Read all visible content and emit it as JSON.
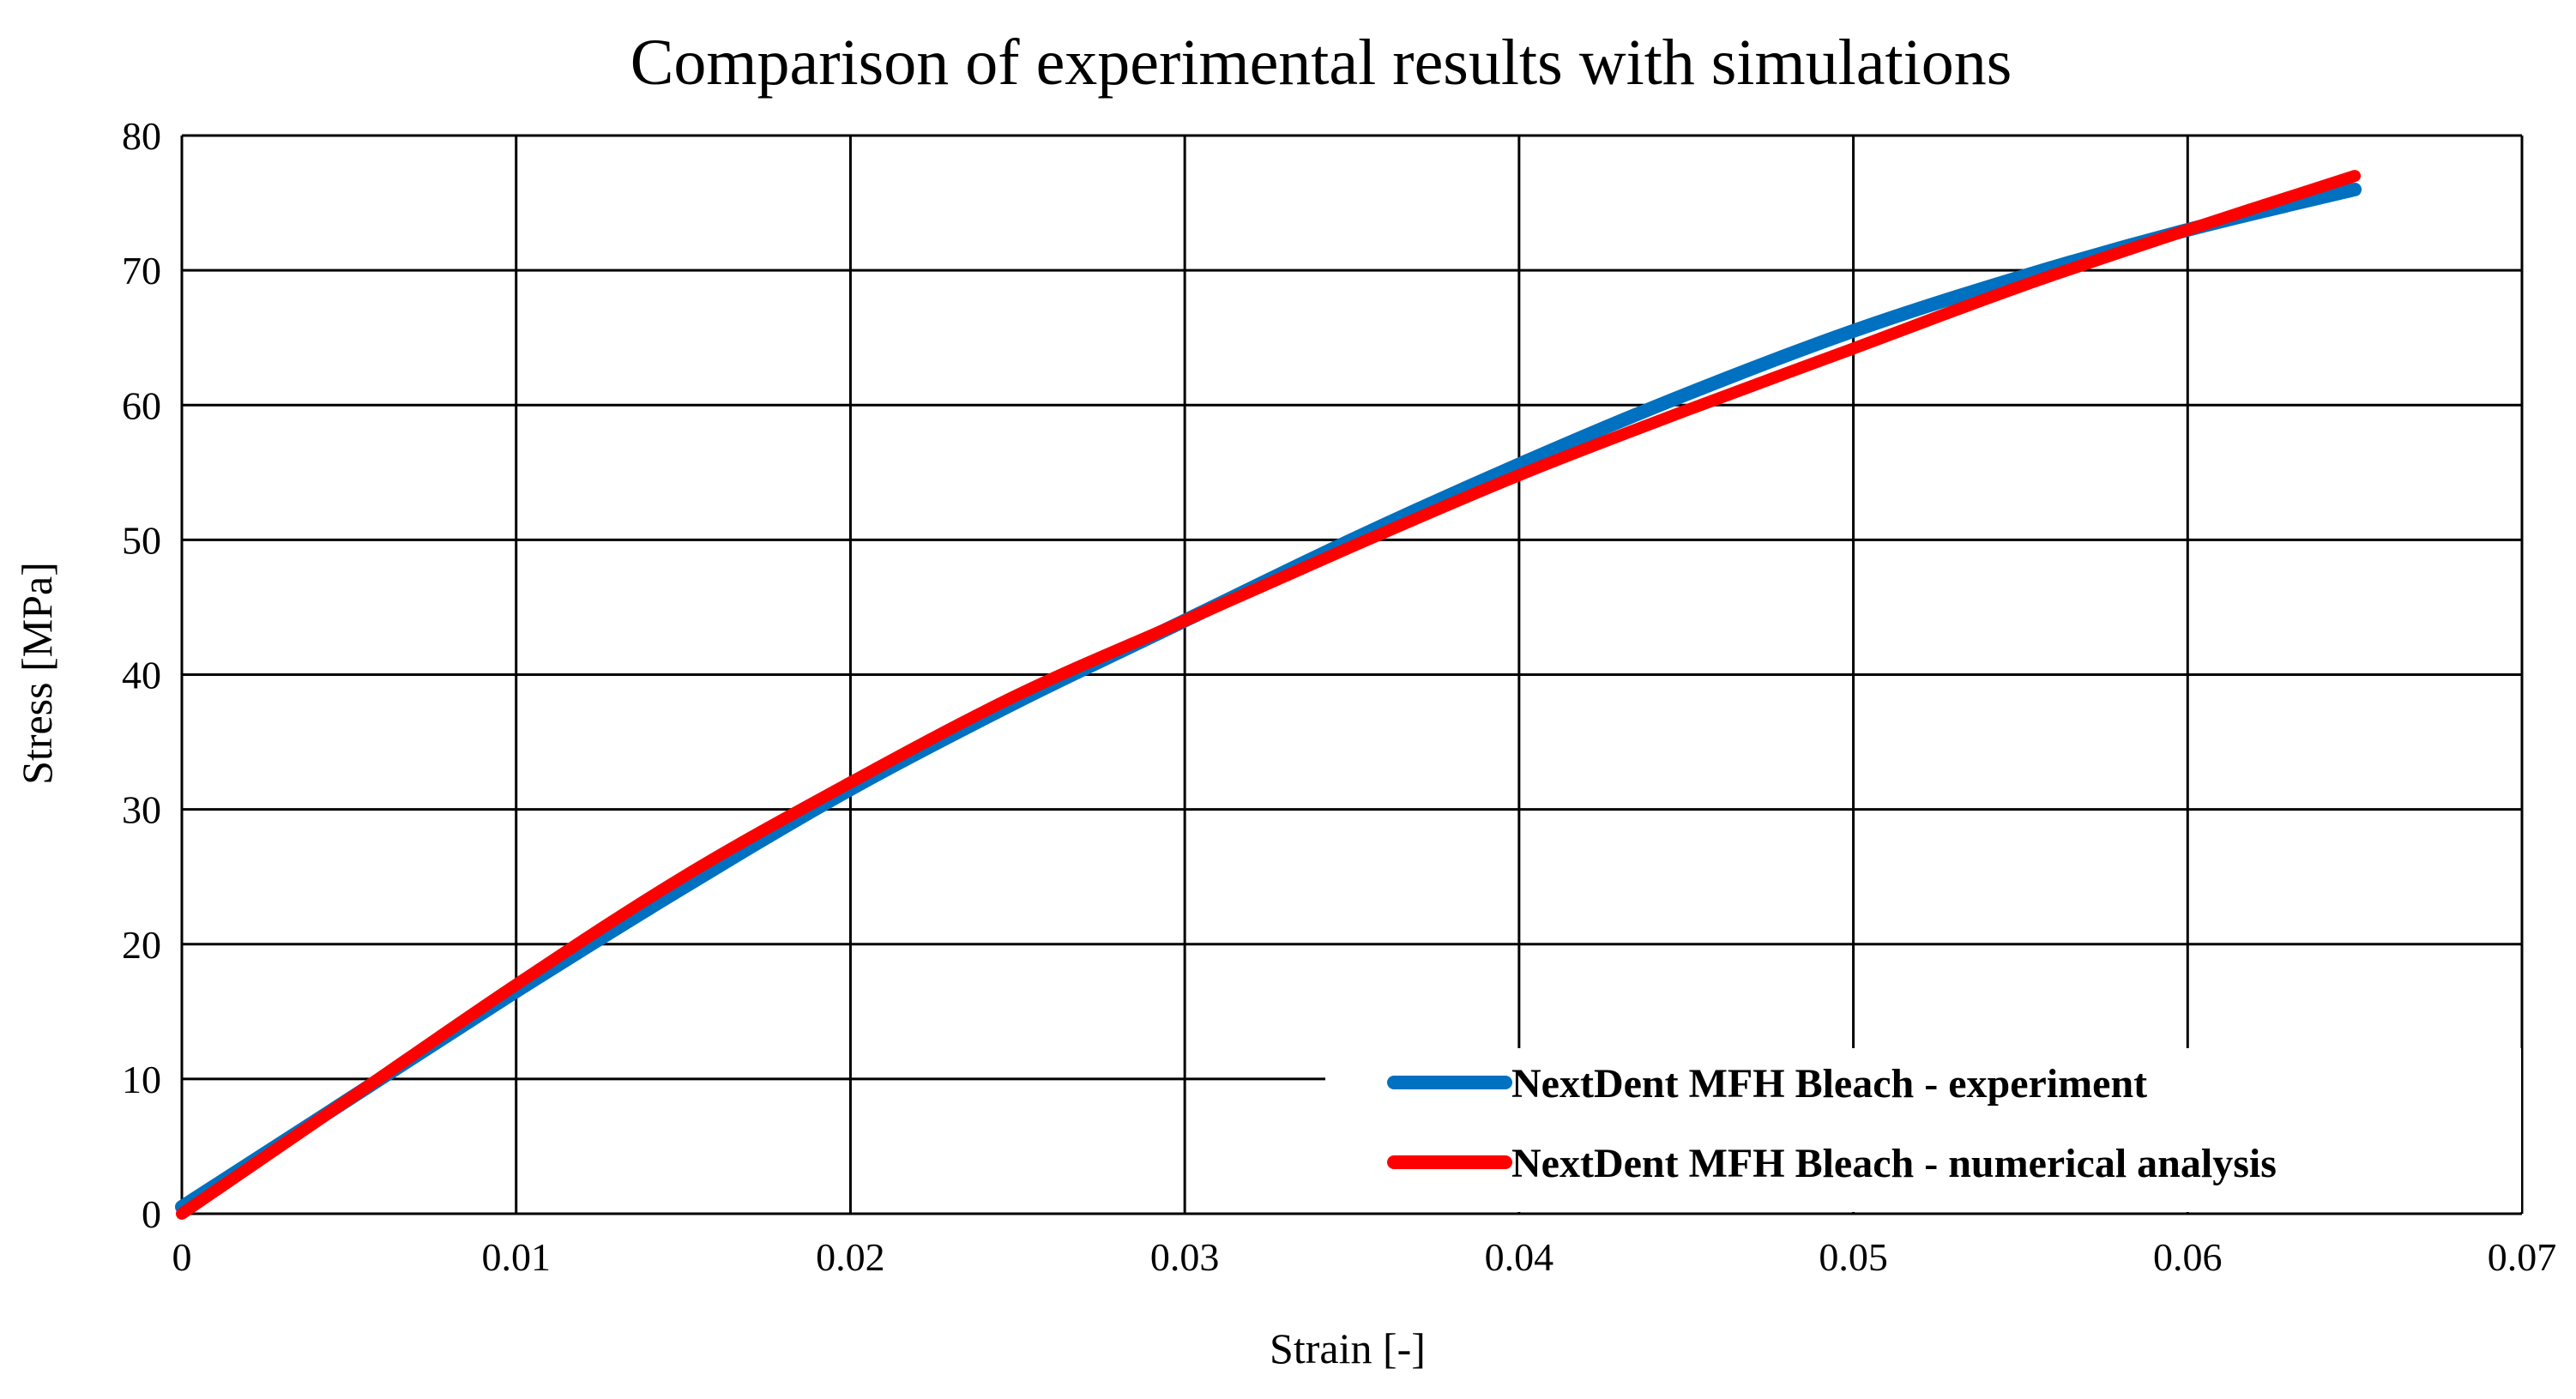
{
  "chart_data": {
    "type": "line",
    "title": "Comparison of experimental results with simulations",
    "xlabel": "Strain [-]",
    "ylabel": "Stress [MPa]",
    "xlim": [
      0,
      0.07
    ],
    "ylim": [
      0,
      80
    ],
    "x_ticks": [
      0,
      0.01,
      0.02,
      0.03,
      0.04,
      0.05,
      0.06,
      0.07
    ],
    "x_tick_labels": [
      "0",
      "0.01",
      "0.02",
      "0.03",
      "0.04",
      "0.05",
      "0.06",
      "0.07"
    ],
    "y_ticks": [
      0,
      10,
      20,
      30,
      40,
      50,
      60,
      70,
      80
    ],
    "y_tick_labels": [
      "0",
      "10",
      "20",
      "30",
      "40",
      "50",
      "60",
      "70",
      "80"
    ],
    "grid": true,
    "legend_position": "bottom-right",
    "series": [
      {
        "name": "NextDent MFH Bleach - experiment",
        "color": "#0070C0",
        "x": [
          0,
          0.005,
          0.01,
          0.015,
          0.02,
          0.025,
          0.03,
          0.035,
          0.04,
          0.045,
          0.05,
          0.055,
          0.06,
          0.065
        ],
        "y": [
          0.5,
          8.5,
          16.5,
          24.2,
          31.5,
          38.0,
          44.0,
          50.0,
          55.6,
          60.8,
          65.5,
          69.5,
          73.0,
          76.0
        ]
      },
      {
        "name": "NextDent MFH Bleach - numerical analysis",
        "color": "#FF0000",
        "x": [
          0,
          0.005,
          0.01,
          0.015,
          0.02,
          0.025,
          0.03,
          0.035,
          0.04,
          0.045,
          0.05,
          0.055,
          0.06,
          0.065
        ],
        "y": [
          0.0,
          8.5,
          17.0,
          25.0,
          32.0,
          38.5,
          44.0,
          49.5,
          54.8,
          59.6,
          64.2,
          68.8,
          73.0,
          77.0
        ]
      }
    ]
  }
}
